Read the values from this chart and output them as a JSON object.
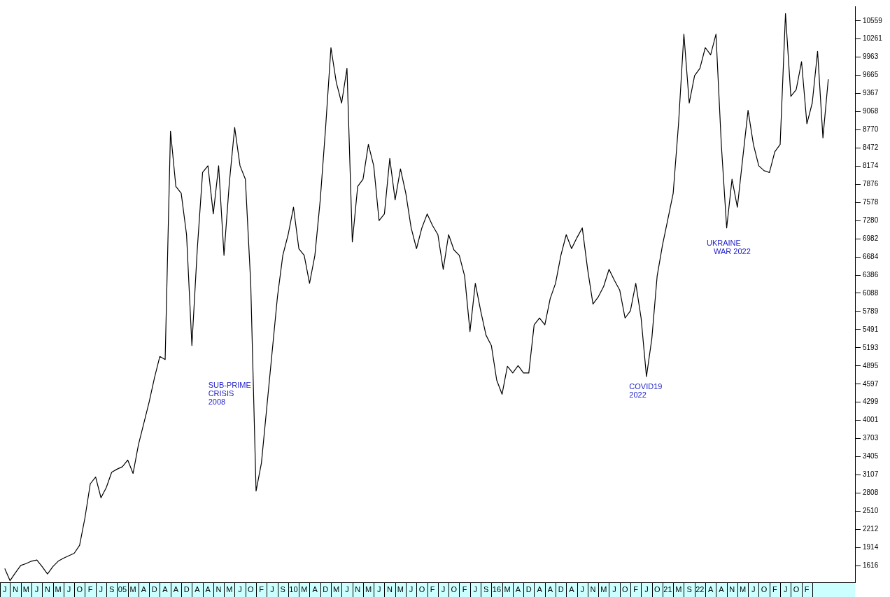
{
  "chart_data": {
    "type": "line",
    "categories": [
      "J",
      null,
      "N",
      null,
      "M",
      null,
      "J",
      null,
      "N",
      null,
      "M",
      null,
      "J",
      null,
      "O",
      null,
      "F",
      null,
      "J",
      null,
      "S",
      null,
      "05",
      null,
      "M",
      null,
      "A",
      null,
      "D",
      null,
      "A",
      null,
      "A",
      null,
      "D",
      null,
      "A",
      null,
      "A",
      null,
      "N",
      null,
      "M",
      null,
      "J",
      null,
      "O",
      null,
      "F",
      null,
      "J",
      null,
      "S",
      null,
      "10",
      null,
      "M",
      null,
      "A",
      null,
      "D",
      null,
      "M",
      null,
      "J",
      null,
      "N",
      null,
      "M",
      null,
      "J",
      null,
      "N",
      null,
      "M",
      null,
      "J",
      null,
      "O",
      null,
      "F",
      null,
      "J",
      null,
      "O",
      null,
      "F",
      null,
      "J",
      null,
      "S",
      null,
      "16",
      null,
      "M",
      null,
      "A",
      null,
      "D",
      null,
      "A",
      null,
      "A",
      null,
      "D",
      null,
      "A",
      null,
      "J",
      null,
      "N",
      null,
      "M",
      null,
      "J",
      null,
      "O",
      null,
      "F",
      null,
      "J",
      null,
      "O",
      null,
      "21",
      null,
      "M",
      null,
      "S",
      null,
      "22",
      null,
      "A",
      null,
      "A",
      null,
      "N",
      null,
      "M",
      null,
      "J",
      null,
      "O",
      null,
      "F",
      null,
      "J",
      null,
      "O",
      null,
      "F",
      null,
      null,
      null,
      null,
      null,
      null,
      null,
      null,
      null
    ],
    "series": [
      {
        "color": "#000000",
        "values": [
          1570,
          1370,
          1500,
          1620,
          1650,
          1690,
          1710,
          1600,
          1480,
          1600,
          1690,
          1740,
          1780,
          1820,
          1950,
          2400,
          2960,
          3070,
          2730,
          2900,
          3150,
          3200,
          3240,
          3350,
          3130,
          3600,
          3950,
          4300,
          4700,
          5050,
          5000,
          8750,
          7840,
          7730,
          7050,
          5230,
          6800,
          8070,
          8180,
          7390,
          8180,
          6710,
          7900,
          8810,
          8180,
          7960,
          6250,
          2840,
          3300,
          4210,
          5120,
          6030,
          6710,
          7050,
          7500,
          6820,
          6710,
          6250,
          6710,
          7620,
          8800,
          10120,
          9550,
          9210,
          9780,
          6930,
          7840,
          7960,
          8530,
          8180,
          7280,
          7390,
          8300,
          7620,
          8130,
          7730,
          7160,
          6820,
          7160,
          7390,
          7200,
          7050,
          6480,
          7050,
          6800,
          6710,
          6370,
          5460,
          6250,
          5800,
          5400,
          5230,
          4660,
          4430,
          4890,
          4780,
          4900,
          4780,
          4780,
          5570,
          5680,
          5570,
          6000,
          6250,
          6710,
          7050,
          6820,
          7000,
          7160,
          6480,
          5910,
          6030,
          6200,
          6480,
          6300,
          6140,
          5680,
          5800,
          6250,
          5680,
          4720,
          5340,
          6370,
          6880,
          7300,
          7730,
          8870,
          10340,
          9210,
          9660,
          9780,
          10120,
          10000,
          10340,
          8530,
          7160,
          7960,
          7500,
          8300,
          9090,
          8530,
          8180,
          8100,
          8070,
          8410,
          8530,
          10680,
          9320,
          9430,
          9890,
          8870,
          9210,
          10060,
          8640,
          9600,
          null,
          null,
          null,
          null,
          null
        ]
      }
    ],
    "ylim": [
      1343,
      10798
    ],
    "yticks": [
      1616,
      1914,
      2212,
      2510,
      2808,
      3107,
      3405,
      3703,
      4001,
      4299,
      4597,
      4895,
      5193,
      5491,
      5789,
      6088,
      6386,
      6684,
      6982,
      7280,
      7578,
      7876,
      8174,
      8472,
      8770,
      9068,
      9367,
      9665,
      9963,
      10261,
      10559
    ],
    "annotations": [
      "SUB-PRIME\nCRISIS\n2008",
      "COVID19\n2022",
      "UKRAINE\nWAR 2022"
    ]
  }
}
